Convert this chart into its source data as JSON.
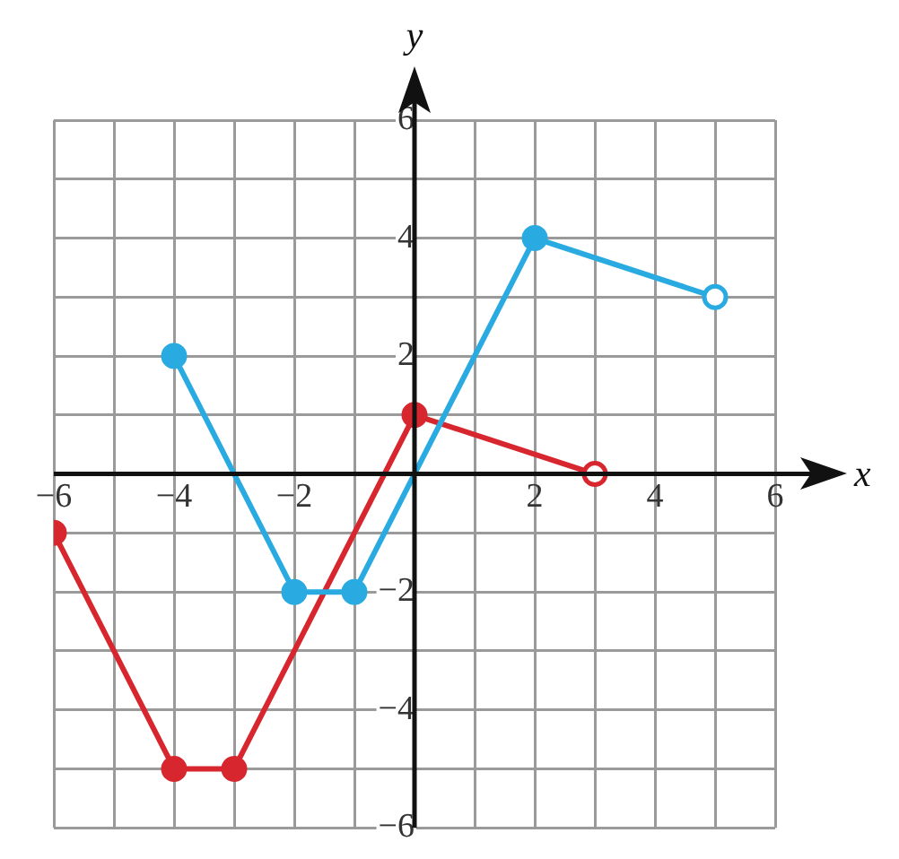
{
  "chart_data": {
    "type": "line",
    "xlabel": "x",
    "ylabel": "y",
    "xlim": [
      -6,
      6
    ],
    "ylim": [
      -6,
      6
    ],
    "xticks": [
      -6,
      {
        "value": -5,
        "label": null
      },
      -4,
      {
        "value": -3,
        "label": null
      },
      -2,
      {
        "value": -1,
        "label": null
      },
      {
        "value": 0,
        "label": null
      },
      {
        "value": 1,
        "label": null
      },
      2,
      {
        "value": 3,
        "label": null
      },
      4,
      {
        "value": 5,
        "label": null
      },
      6
    ],
    "yticks": [
      -6,
      {
        "value": -5,
        "label": null
      },
      -4,
      {
        "value": -3,
        "label": null
      },
      -2,
      {
        "value": -1,
        "label": null
      },
      {
        "value": 0,
        "label": null
      },
      {
        "value": 1,
        "label": null
      },
      2,
      {
        "value": 3,
        "label": null
      },
      4,
      {
        "value": 5,
        "label": null
      },
      6
    ],
    "grid": true,
    "legend": false,
    "marker": "circle",
    "line_style": "solid",
    "series": [
      {
        "color": "#29abe2",
        "x": [
          -4,
          -2,
          -1,
          2,
          5
        ],
        "values": [
          2,
          -2,
          -2,
          4,
          3
        ]
      },
      {
        "color": "#d7262e",
        "x": [
          -6,
          -4,
          -3,
          0,
          3
        ],
        "values": [
          -1,
          -5,
          -5,
          1,
          0
        ]
      }
    ]
  }
}
